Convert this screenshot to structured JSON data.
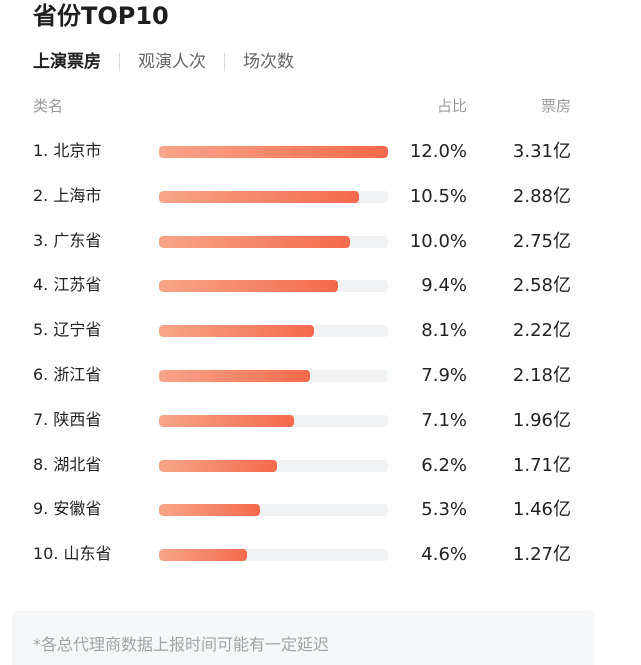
{
  "title": "省份TOP10",
  "tabs": [
    {
      "label": "上演票房",
      "active": true
    },
    {
      "label": "观演人次",
      "active": false
    },
    {
      "label": "场次数",
      "active": false
    }
  ],
  "header": {
    "name": "类名",
    "share": "占比",
    "box": "票房"
  },
  "rows": [
    {
      "name": "1. 北京市",
      "share": "12.0%",
      "box": "3.31亿",
      "value": 12.0
    },
    {
      "name": "2. 上海市",
      "share": "10.5%",
      "box": "2.88亿",
      "value": 10.5
    },
    {
      "name": "3. 广东省",
      "share": "10.0%",
      "box": "2.75亿",
      "value": 10.0
    },
    {
      "name": "4. 江苏省",
      "share": "9.4%",
      "box": "2.58亿",
      "value": 9.4
    },
    {
      "name": "5. 辽宁省",
      "share": "8.1%",
      "box": "2.22亿",
      "value": 8.1
    },
    {
      "name": "6. 浙江省",
      "share": "7.9%",
      "box": "2.18亿",
      "value": 7.9
    },
    {
      "name": "7. 陕西省",
      "share": "7.1%",
      "box": "1.96亿",
      "value": 7.1
    },
    {
      "name": "8. 湖北省",
      "share": "6.2%",
      "box": "1.71亿",
      "value": 6.2
    },
    {
      "name": "9. 安徽省",
      "share": "5.3%",
      "box": "1.46亿",
      "value": 5.3
    },
    {
      "name": "10. 山东省",
      "share": "4.6%",
      "box": "1.27亿",
      "value": 4.6
    }
  ],
  "footnote": "*各总代理商数据上报时间可能有一定延迟",
  "colors": {
    "bar_start": "#f8a58a",
    "bar_end": "#f46a4b",
    "track": "#f1f2f4"
  }
}
